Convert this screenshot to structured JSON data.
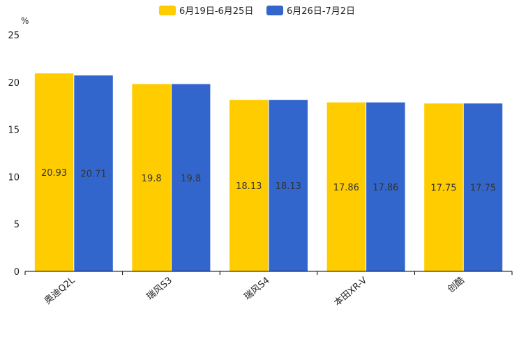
{
  "chart_data": {
    "type": "bar",
    "title": "",
    "xlabel": "",
    "ylabel": "%",
    "ylim": [
      0,
      25
    ],
    "yticks": [
      0,
      5,
      10,
      15,
      20,
      25
    ],
    "grid": false,
    "legend_position": "top-center",
    "categories": [
      "奥迪Q2L",
      "瑞风S3",
      "瑞风S4",
      "本田XR-V",
      "创酷"
    ],
    "series": [
      {
        "name": "6月19日-6月25日",
        "color": "#FFCC00",
        "values": [
          20.93,
          19.8,
          18.13,
          17.86,
          17.75
        ]
      },
      {
        "name": "6月26日-7月2日",
        "color": "#3366CC",
        "values": [
          20.71,
          19.8,
          18.13,
          17.86,
          17.75
        ]
      }
    ]
  }
}
